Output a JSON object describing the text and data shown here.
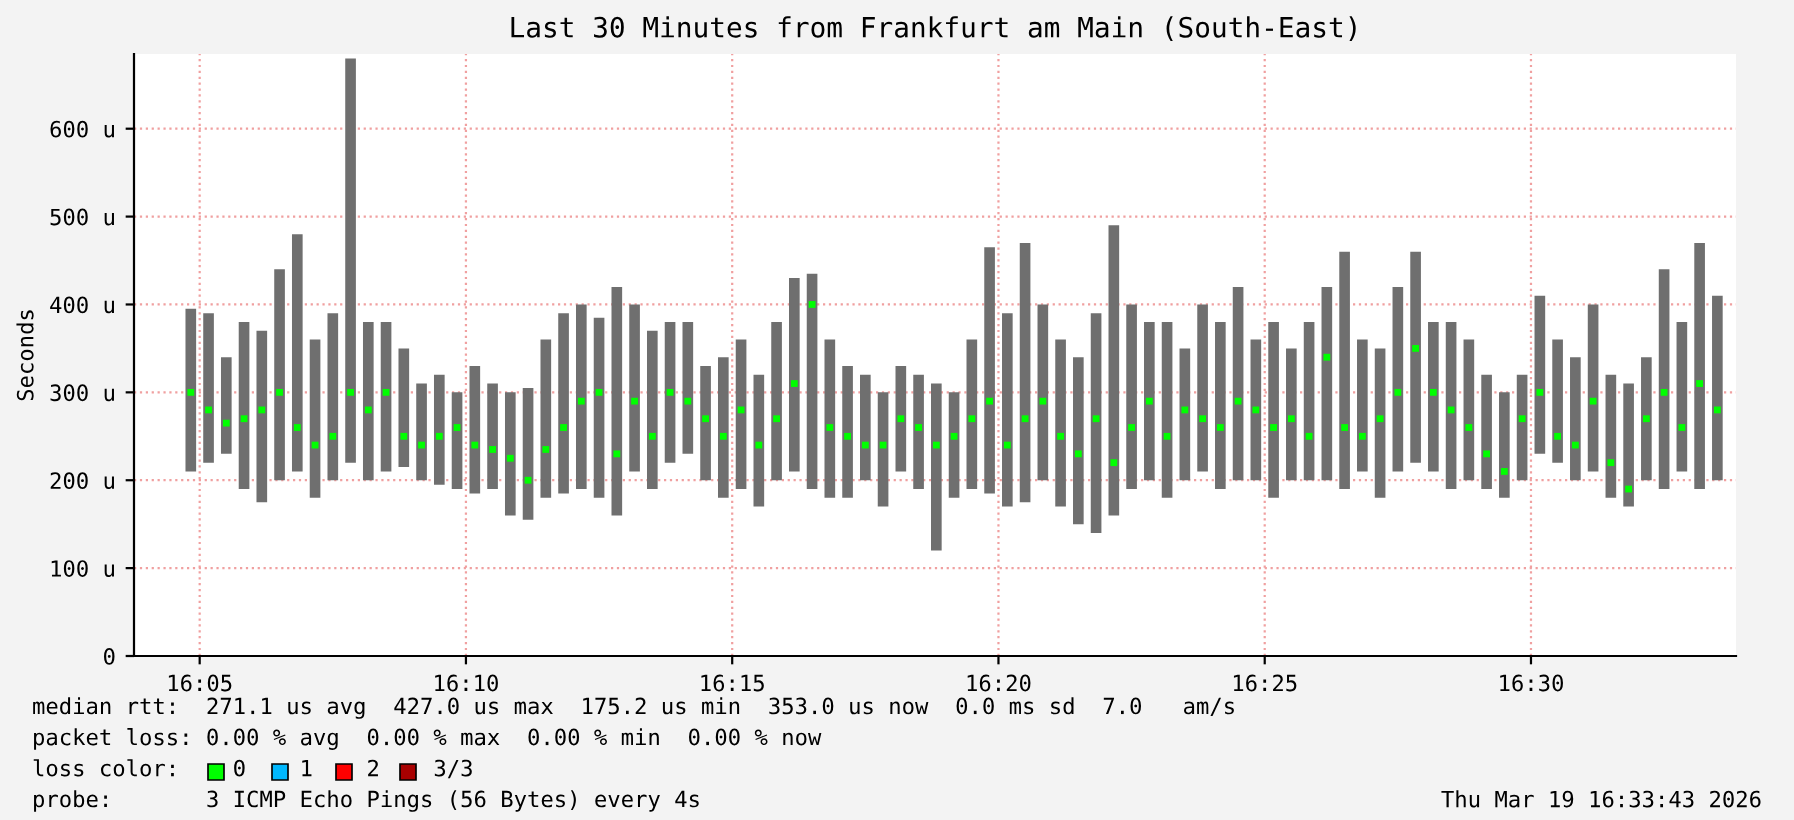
{
  "chart_data": {
    "type": "scatter",
    "title": "Last 30 Minutes from Frankfurt am Main (South-East)",
    "ylabel": "Seconds",
    "x": [
      "2026-03-19T16:04:50",
      "2026-03-19T16:05:10",
      "2026-03-19T16:05:30",
      "2026-03-19T16:05:50",
      "2026-03-19T16:06:10",
      "2026-03-19T16:06:30",
      "2026-03-19T16:06:50",
      "2026-03-19T16:07:10",
      "2026-03-19T16:07:30",
      "2026-03-19T16:07:50",
      "2026-03-19T16:08:10",
      "2026-03-19T16:08:30",
      "2026-03-19T16:08:50",
      "2026-03-19T16:09:10",
      "2026-03-19T16:09:30",
      "2026-03-19T16:09:50",
      "2026-03-19T16:10:10",
      "2026-03-19T16:10:30",
      "2026-03-19T16:10:50",
      "2026-03-19T16:11:10",
      "2026-03-19T16:11:30",
      "2026-03-19T16:11:50",
      "2026-03-19T16:12:10",
      "2026-03-19T16:12:30",
      "2026-03-19T16:12:50",
      "2026-03-19T16:13:10",
      "2026-03-19T16:13:30",
      "2026-03-19T16:13:50",
      "2026-03-19T16:14:10",
      "2026-03-19T16:14:30",
      "2026-03-19T16:14:50",
      "2026-03-19T16:15:10",
      "2026-03-19T16:15:30",
      "2026-03-19T16:15:50",
      "2026-03-19T16:16:10",
      "2026-03-19T16:16:30",
      "2026-03-19T16:16:50",
      "2026-03-19T16:17:10",
      "2026-03-19T16:17:30",
      "2026-03-19T16:17:50",
      "2026-03-19T16:18:10",
      "2026-03-19T16:18:30",
      "2026-03-19T16:18:50",
      "2026-03-19T16:19:10",
      "2026-03-19T16:19:30",
      "2026-03-19T16:19:50",
      "2026-03-19T16:20:10",
      "2026-03-19T16:20:30",
      "2026-03-19T16:20:50",
      "2026-03-19T16:21:10",
      "2026-03-19T16:21:30",
      "2026-03-19T16:21:50",
      "2026-03-19T16:22:10",
      "2026-03-19T16:22:30",
      "2026-03-19T16:22:50",
      "2026-03-19T16:23:10",
      "2026-03-19T16:23:30",
      "2026-03-19T16:23:50",
      "2026-03-19T16:24:10",
      "2026-03-19T16:24:30",
      "2026-03-19T16:24:50",
      "2026-03-19T16:25:10",
      "2026-03-19T16:25:30",
      "2026-03-19T16:25:50",
      "2026-03-19T16:26:10",
      "2026-03-19T16:26:30",
      "2026-03-19T16:26:50",
      "2026-03-19T16:27:10",
      "2026-03-19T16:27:30",
      "2026-03-19T16:27:50",
      "2026-03-19T16:28:10",
      "2026-03-19T16:28:30",
      "2026-03-19T16:28:50",
      "2026-03-19T16:29:10",
      "2026-03-19T16:29:30",
      "2026-03-19T16:29:50",
      "2026-03-19T16:30:10",
      "2026-03-19T16:30:30",
      "2026-03-19T16:30:50",
      "2026-03-19T16:31:10",
      "2026-03-19T16:31:30",
      "2026-03-19T16:31:50",
      "2026-03-19T16:32:10",
      "2026-03-19T16:32:30",
      "2026-03-19T16:32:50",
      "2026-03-19T16:33:10",
      "2026-03-19T16:33:30"
    ],
    "series": [
      {
        "color": "#00ff00",
        "values": [
          300,
          280,
          265,
          270,
          280,
          300,
          260,
          240,
          250,
          300,
          280,
          300,
          250,
          240,
          250,
          260,
          240,
          235,
          225,
          200,
          235,
          260,
          290,
          300,
          230,
          290,
          250,
          300,
          290,
          270,
          250,
          280,
          240,
          270,
          310,
          400,
          260,
          250,
          240,
          240,
          270,
          260,
          240,
          250,
          270,
          290,
          240,
          270,
          290,
          250,
          230,
          270,
          220,
          260,
          290,
          250,
          280,
          270,
          260,
          290,
          280,
          260,
          270,
          250,
          340,
          260,
          250,
          270,
          300,
          350,
          300,
          280,
          260,
          230,
          210,
          270,
          300,
          250,
          240,
          290,
          220,
          190,
          270,
          300,
          260,
          310,
          280
        ],
        "lower": [
          210,
          220,
          230,
          190,
          175,
          200,
          210,
          180,
          200,
          220,
          200,
          210,
          215,
          200,
          195,
          190,
          185,
          190,
          160,
          155,
          180,
          185,
          190,
          180,
          160,
          210,
          190,
          220,
          230,
          200,
          180,
          190,
          170,
          200,
          210,
          190,
          180,
          180,
          200,
          170,
          210,
          190,
          120,
          180,
          190,
          185,
          170,
          175,
          200,
          170,
          150,
          140,
          160,
          190,
          200,
          180,
          200,
          210,
          190,
          200,
          200,
          180,
          200,
          200,
          200,
          190,
          210,
          180,
          210,
          220,
          210,
          190,
          200,
          190,
          180,
          200,
          230,
          220,
          200,
          210,
          180,
          170,
          200,
          190,
          210,
          190,
          200
        ],
        "upper": [
          395,
          390,
          340,
          380,
          370,
          440,
          480,
          360,
          390,
          680,
          380,
          380,
          350,
          310,
          320,
          300,
          330,
          310,
          300,
          305,
          360,
          390,
          400,
          385,
          420,
          400,
          370,
          380,
          380,
          330,
          340,
          360,
          320,
          380,
          430,
          435,
          360,
          330,
          320,
          300,
          330,
          320,
          310,
          300,
          360,
          465,
          390,
          470,
          400,
          360,
          340,
          390,
          490,
          400,
          380,
          380,
          350,
          400,
          380,
          420,
          360,
          380,
          350,
          380,
          420,
          460,
          360,
          350,
          420,
          460,
          380,
          380,
          360,
          320,
          300,
          320,
          410,
          360,
          340,
          400,
          320,
          310,
          340,
          440,
          380,
          470,
          410
        ]
      }
    ],
    "marker": "square",
    "xlim": [
      "2026-03-19T16:03:46",
      "2026-03-19T16:33:51"
    ],
    "xticks": [
      {
        "value": "2026-03-19T16:05",
        "label": "16:05"
      },
      {
        "value": "2026-03-19T16:10",
        "label": "16:10"
      },
      {
        "value": "2026-03-19T16:15",
        "label": "16:15"
      },
      {
        "value": "2026-03-19T16:20",
        "label": "16:20"
      },
      {
        "value": "2026-03-19T16:25",
        "label": "16:25"
      },
      {
        "value": "2026-03-19T16:30",
        "label": "16:30"
      }
    ],
    "ylim": [
      0,
      685
    ],
    "yticks": [
      0,
      {
        "value": 100,
        "label": "100 u"
      },
      {
        "value": 200,
        "label": "200 u"
      },
      {
        "value": 300,
        "label": "300 u"
      },
      {
        "value": 400,
        "label": "400 u"
      },
      {
        "value": 500,
        "label": "500 u"
      },
      {
        "value": 600,
        "label": "600 u"
      }
    ],
    "grid": true,
    "annotations": [
      "median rtt:  271.1 us avg  427.0 us max  175.2 us min  353.0 us now  0.0 ms sd  7.0   am/s",
      "packet loss: 0.00 % avg  0.00 % max  0.00 % min  0.00 % now",
      "loss color:    0    1    2    3/3",
      "probe:       3 ICMP Echo Pings (56 Bytes) every 4s",
      "Thu Mar 19 16:33:43 2026"
    ]
  }
}
